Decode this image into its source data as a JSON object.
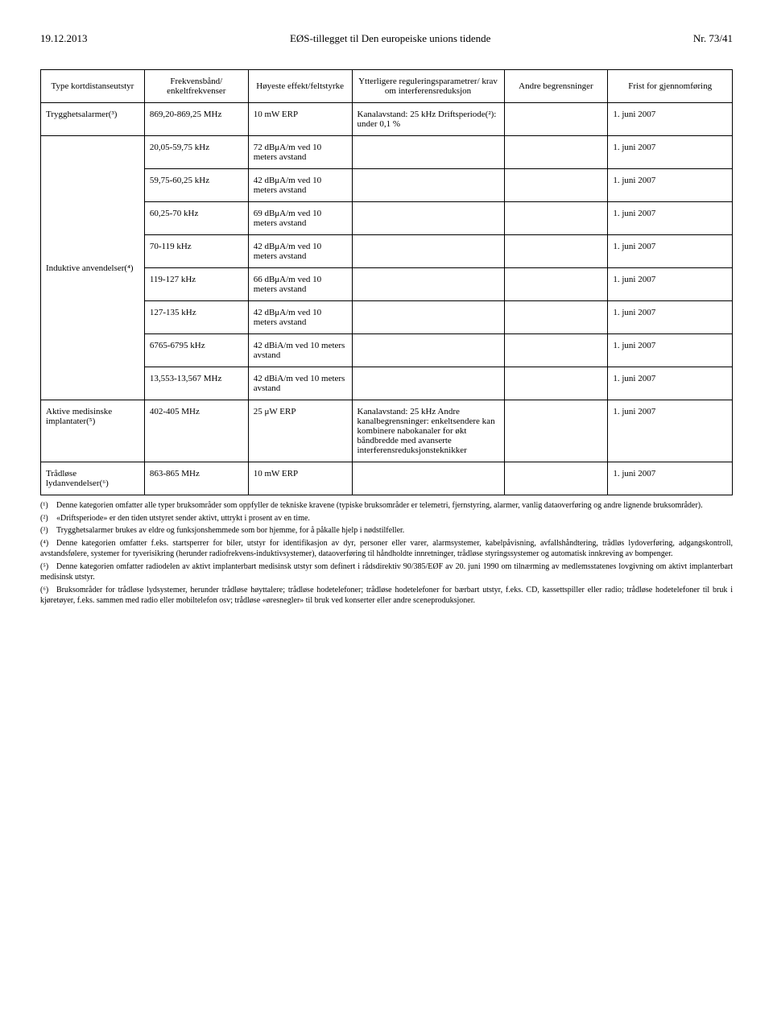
{
  "header": {
    "left": "19.12.2013",
    "center": "EØS-tillegget til Den europeiske unions tidende",
    "right": "Nr. 73/41"
  },
  "columns": {
    "c1": "Type kortdistanseutstyr",
    "c2": "Frekvensbånd/ enkeltfrekvenser",
    "c3": "Høyeste effekt/feltstyrke",
    "c4": "Ytterligere reguleringsparametrer/ krav om interferensreduksjon",
    "c5": "Andre begrensninger",
    "c6": "Frist for gjennomføring"
  },
  "rows": [
    {
      "cat": "Trygghetsalarmer(³)",
      "catRowspan": 1,
      "band": "869,20-869,25 MHz",
      "power": "10 mW ERP",
      "param": "Kanalavstand: 25 kHz Driftsperiode(²): under 0,1 %",
      "other": "",
      "deadline": "1. juni 2007"
    },
    {
      "cat": "",
      "catRowspan": 8,
      "catLabel": "Induktive anvendelser(⁴)",
      "band": "20,05-59,75 kHz",
      "power": "72 dBμA/m ved 10 meters avstand",
      "param": "",
      "other": "",
      "deadline": "1. juni 2007"
    },
    {
      "band": "59,75-60,25 kHz",
      "power": "42 dBμA/m ved 10 meters avstand",
      "param": "",
      "other": "",
      "deadline": "1. juni 2007"
    },
    {
      "band": "60,25-70 kHz",
      "power": "69 dBμA/m ved 10 meters avstand",
      "param": "",
      "other": "",
      "deadline": "1. juni 2007"
    },
    {
      "band": "70-119 kHz",
      "power": "42 dBμA/m ved 10 meters avstand",
      "param": "",
      "other": "",
      "deadline": "1. juni 2007"
    },
    {
      "band": "119-127 kHz",
      "power": "66 dBμA/m ved 10 meters avstand",
      "param": "",
      "other": "",
      "deadline": "1. juni 2007"
    },
    {
      "band": "127-135 kHz",
      "power": "42 dBμA/m ved 10 meters avstand",
      "param": "",
      "other": "",
      "deadline": "1. juni 2007"
    },
    {
      "band": "6765-6795 kHz",
      "power": "42 dBiA/m ved 10 meters avstand",
      "param": "",
      "other": "",
      "deadline": "1. juni 2007"
    },
    {
      "band": "13,553-13,567 MHz",
      "power": "42 dBiA/m ved 10 meters avstand",
      "param": "",
      "other": "",
      "deadline": "1. juni 2007"
    },
    {
      "cat": "Aktive medisinske implantater(⁵)",
      "catRowspan": 1,
      "band": "402-405 MHz",
      "power": "25 μW ERP",
      "param": "Kanalavstand: 25 kHz Andre kanalbegrensninger: enkeltsendere kan kombinere nabokanaler for økt båndbredde med avanserte interferensreduksjonsteknikker",
      "other": "",
      "deadline": "1. juni 2007"
    },
    {
      "cat": "Trådløse lydanvendelser(⁶)",
      "catRowspan": 1,
      "band": "863-865 MHz",
      "power": "10 mW ERP",
      "param": "",
      "other": "",
      "deadline": "1. juni 2007"
    }
  ],
  "footnotes": {
    "f1": "Denne kategorien omfatter alle typer bruksområder som oppfyller de tekniske kravene (typiske bruksområder er telemetri, fjernstyring, alarmer, vanlig dataoverføring og andre lignende bruksområder).",
    "f2": "«Driftsperiode» er den tiden utstyret sender aktivt, uttrykt i prosent av en time.",
    "f3": "Trygghetsalarmer brukes av eldre og funksjonshemmede som bor hjemme, for å påkalle hjelp i nødstilfeller.",
    "f4": "Denne kategorien omfatter f.eks. startsperrer for biler, utstyr for identifikasjon av dyr, personer eller varer, alarmsystemer, kabelpåvisning, avfallshåndtering, trådløs lydoverføring, adgangskontroll, avstandsfølere, systemer for tyverisikring (herunder radiofrekvens-induktivsystemer), dataoverføring til håndholdte innretninger, trådløse styringssystemer og automatisk innkreving av bompenger.",
    "f5": "Denne kategorien omfatter radiodelen av aktivt implanterbart medisinsk utstyr som definert i rådsdirektiv 90/385/EØF av 20. juni 1990 om tilnærming av medlemsstatenes lovgivning om aktivt implanterbart medisinsk utstyr.",
    "f6": "Bruksområder for trådløse lydsystemer, herunder trådløse høyttalere; trådløse hodetelefoner; trådløse hodetelefoner for bærbart utstyr, f.eks. CD, kassettspiller eller radio; trådløse hodetelefoner til bruk i kjøretøyer, f.eks. sammen med radio eller mobiltelefon osv; trådløse «øresnegler» til bruk ved konserter eller andre sceneproduksjoner."
  }
}
